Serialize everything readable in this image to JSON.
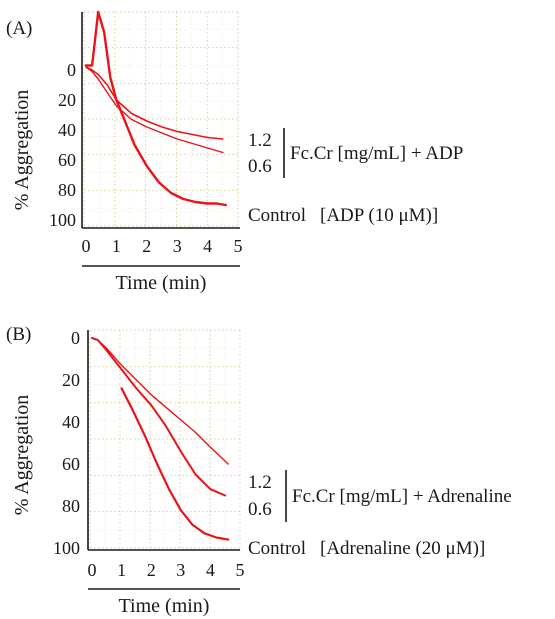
{
  "chart_data": [
    {
      "type": "line",
      "panel": "(A)",
      "xlabel": "Time (min)",
      "ylabel": "% Aggregation",
      "xlim": [
        0,
        5
      ],
      "ylim": [
        0,
        100
      ],
      "y_inverted": true,
      "x_ticks": [
        "0",
        "1",
        "2",
        "3",
        "4",
        "5"
      ],
      "y_ticks": [
        "0",
        "20",
        "40",
        "60",
        "80",
        "100"
      ],
      "grid": true,
      "legend": {
        "group_values": [
          "1.2",
          "0.6"
        ],
        "group_label": "Fc.Cr [mg/mL] + ADP",
        "control_label": "Control",
        "control_agonist": "[ADP (10 μM)]"
      },
      "series": [
        {
          "name": "1.2",
          "x": [
            0,
            0.2,
            0.4,
            0.7,
            1.0,
            1.5,
            2.0,
            2.5,
            3.0,
            3.5,
            4.0,
            4.5
          ],
          "y": [
            -2,
            0,
            3,
            10,
            20,
            29,
            34,
            38,
            41,
            43,
            45,
            46
          ]
        },
        {
          "name": "0.6",
          "x": [
            0,
            0.2,
            0.4,
            0.7,
            1.0,
            1.5,
            2.0,
            2.5,
            3.0,
            3.5,
            4.0,
            4.5
          ],
          "y": [
            -2,
            1,
            6,
            15,
            24,
            33,
            38,
            42,
            46,
            49,
            52,
            55
          ]
        },
        {
          "name": "Control",
          "x": [
            0,
            0.2,
            0.4,
            0.6,
            0.8,
            1.0,
            1.3,
            1.6,
            2.0,
            2.4,
            2.8,
            3.2,
            3.6,
            4.0,
            4.3,
            4.6
          ],
          "y": [
            -3,
            -3,
            -50,
            -25,
            5,
            20,
            35,
            50,
            64,
            75,
            82,
            86,
            88,
            89,
            89,
            90
          ]
        }
      ]
    },
    {
      "type": "line",
      "panel": "(B)",
      "xlabel": "Time (min)",
      "ylabel": "% Aggregation",
      "xlim": [
        0,
        5
      ],
      "ylim": [
        0,
        100
      ],
      "y_inverted": true,
      "x_ticks": [
        "0",
        "1",
        "2",
        "3",
        "4",
        "5"
      ],
      "y_ticks": [
        "0",
        "20",
        "40",
        "60",
        "80",
        "100"
      ],
      "grid": true,
      "legend": {
        "group_values": [
          "1.2",
          "0.6"
        ],
        "group_label": "Fc.Cr [mg/mL] + Adrenaline",
        "control_label": "Control",
        "control_agonist": "[Adrenaline (20 μM)]"
      },
      "series": [
        {
          "name": "1.2",
          "x": [
            0,
            0.2,
            0.5,
            1.0,
            1.5,
            2.0,
            2.5,
            3.0,
            3.5,
            4.0,
            4.6
          ],
          "y": [
            0,
            1,
            5,
            13,
            20,
            27,
            33,
            39,
            45,
            52,
            60
          ]
        },
        {
          "name": "0.6",
          "x": [
            0,
            0.2,
            0.5,
            1.0,
            1.5,
            2.0,
            2.5,
            3.0,
            3.5,
            4.0,
            4.5
          ],
          "y": [
            0,
            1,
            6,
            15,
            24,
            32,
            42,
            54,
            65,
            72,
            75
          ]
        },
        {
          "name": "Control",
          "x": [
            1.0,
            1.4,
            1.8,
            2.2,
            2.6,
            3.0,
            3.4,
            3.8,
            4.2,
            4.6
          ],
          "y": [
            24,
            35,
            47,
            60,
            72,
            82,
            89,
            93,
            95,
            96
          ]
        }
      ]
    }
  ]
}
